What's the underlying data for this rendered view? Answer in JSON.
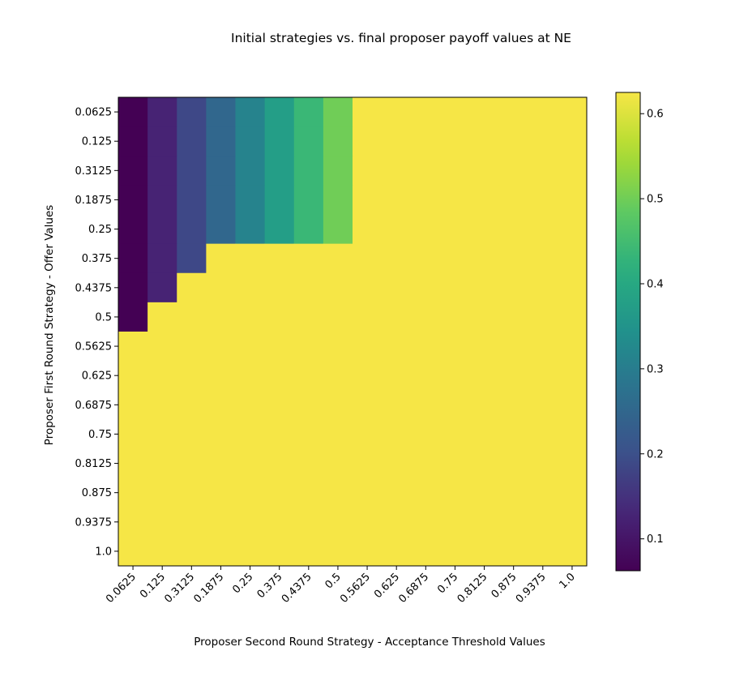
{
  "chart_data": {
    "type": "heatmap",
    "title": "Initial strategies vs. final proposer payoff values at NE",
    "xlabel": "Proposer Second Round Strategy - Acceptance Threshold Values",
    "ylabel": "Proposer First Round Strategy - Offer Values",
    "x_categories": [
      "0.0625",
      "0.125",
      "0.3125",
      "0.1875",
      "0.25",
      "0.375",
      "0.4375",
      "0.5",
      "0.5625",
      "0.625",
      "0.6875",
      "0.75",
      "0.8125",
      "0.875",
      "0.9375",
      "1.0"
    ],
    "y_categories": [
      "0.0625",
      "0.125",
      "0.3125",
      "0.1875",
      "0.25",
      "0.375",
      "0.4375",
      "0.5",
      "0.5625",
      "0.625",
      "0.6875",
      "0.75",
      "0.8125",
      "0.875",
      "0.9375",
      "1.0"
    ],
    "values": [
      [
        0.0625,
        0.125,
        0.1875,
        0.25,
        0.3125,
        0.375,
        0.4375,
        0.5,
        0.625,
        0.625,
        0.625,
        0.625,
        0.625,
        0.625,
        0.625,
        0.625
      ],
      [
        0.0625,
        0.125,
        0.1875,
        0.25,
        0.3125,
        0.375,
        0.4375,
        0.5,
        0.625,
        0.625,
        0.625,
        0.625,
        0.625,
        0.625,
        0.625,
        0.625
      ],
      [
        0.0625,
        0.125,
        0.1875,
        0.25,
        0.3125,
        0.375,
        0.4375,
        0.5,
        0.625,
        0.625,
        0.625,
        0.625,
        0.625,
        0.625,
        0.625,
        0.625
      ],
      [
        0.0625,
        0.125,
        0.1875,
        0.25,
        0.3125,
        0.375,
        0.4375,
        0.5,
        0.625,
        0.625,
        0.625,
        0.625,
        0.625,
        0.625,
        0.625,
        0.625
      ],
      [
        0.0625,
        0.125,
        0.1875,
        0.25,
        0.3125,
        0.375,
        0.4375,
        0.5,
        0.625,
        0.625,
        0.625,
        0.625,
        0.625,
        0.625,
        0.625,
        0.625
      ],
      [
        0.0625,
        0.125,
        0.1875,
        0.625,
        0.625,
        0.625,
        0.625,
        0.625,
        0.625,
        0.625,
        0.625,
        0.625,
        0.625,
        0.625,
        0.625,
        0.625
      ],
      [
        0.0625,
        0.125,
        0.625,
        0.625,
        0.625,
        0.625,
        0.625,
        0.625,
        0.625,
        0.625,
        0.625,
        0.625,
        0.625,
        0.625,
        0.625,
        0.625
      ],
      [
        0.0625,
        0.625,
        0.625,
        0.625,
        0.625,
        0.625,
        0.625,
        0.625,
        0.625,
        0.625,
        0.625,
        0.625,
        0.625,
        0.625,
        0.625,
        0.625
      ],
      [
        0.625,
        0.625,
        0.625,
        0.625,
        0.625,
        0.625,
        0.625,
        0.625,
        0.625,
        0.625,
        0.625,
        0.625,
        0.625,
        0.625,
        0.625,
        0.625
      ],
      [
        0.625,
        0.625,
        0.625,
        0.625,
        0.625,
        0.625,
        0.625,
        0.625,
        0.625,
        0.625,
        0.625,
        0.625,
        0.625,
        0.625,
        0.625,
        0.625
      ],
      [
        0.625,
        0.625,
        0.625,
        0.625,
        0.625,
        0.625,
        0.625,
        0.625,
        0.625,
        0.625,
        0.625,
        0.625,
        0.625,
        0.625,
        0.625,
        0.625
      ],
      [
        0.625,
        0.625,
        0.625,
        0.625,
        0.625,
        0.625,
        0.625,
        0.625,
        0.625,
        0.625,
        0.625,
        0.625,
        0.625,
        0.625,
        0.625,
        0.625
      ],
      [
        0.625,
        0.625,
        0.625,
        0.625,
        0.625,
        0.625,
        0.625,
        0.625,
        0.625,
        0.625,
        0.625,
        0.625,
        0.625,
        0.625,
        0.625,
        0.625
      ],
      [
        0.625,
        0.625,
        0.625,
        0.625,
        0.625,
        0.625,
        0.625,
        0.625,
        0.625,
        0.625,
        0.625,
        0.625,
        0.625,
        0.625,
        0.625,
        0.625
      ],
      [
        0.625,
        0.625,
        0.625,
        0.625,
        0.625,
        0.625,
        0.625,
        0.625,
        0.625,
        0.625,
        0.625,
        0.625,
        0.625,
        0.625,
        0.625,
        0.625
      ],
      [
        0.625,
        0.625,
        0.625,
        0.625,
        0.625,
        0.625,
        0.625,
        0.625,
        0.625,
        0.625,
        0.625,
        0.625,
        0.625,
        0.625,
        0.625,
        0.625
      ]
    ],
    "colormap": "viridis",
    "vmin": 0.0625,
    "vmax": 0.625,
    "colorbar_ticks": [
      "0.1",
      "0.2",
      "0.3",
      "0.4",
      "0.5",
      "0.6"
    ],
    "colorbar_tick_values": [
      0.1,
      0.2,
      0.3,
      0.4,
      0.5,
      0.6
    ],
    "grid": false,
    "colorbar_placement": "right"
  }
}
